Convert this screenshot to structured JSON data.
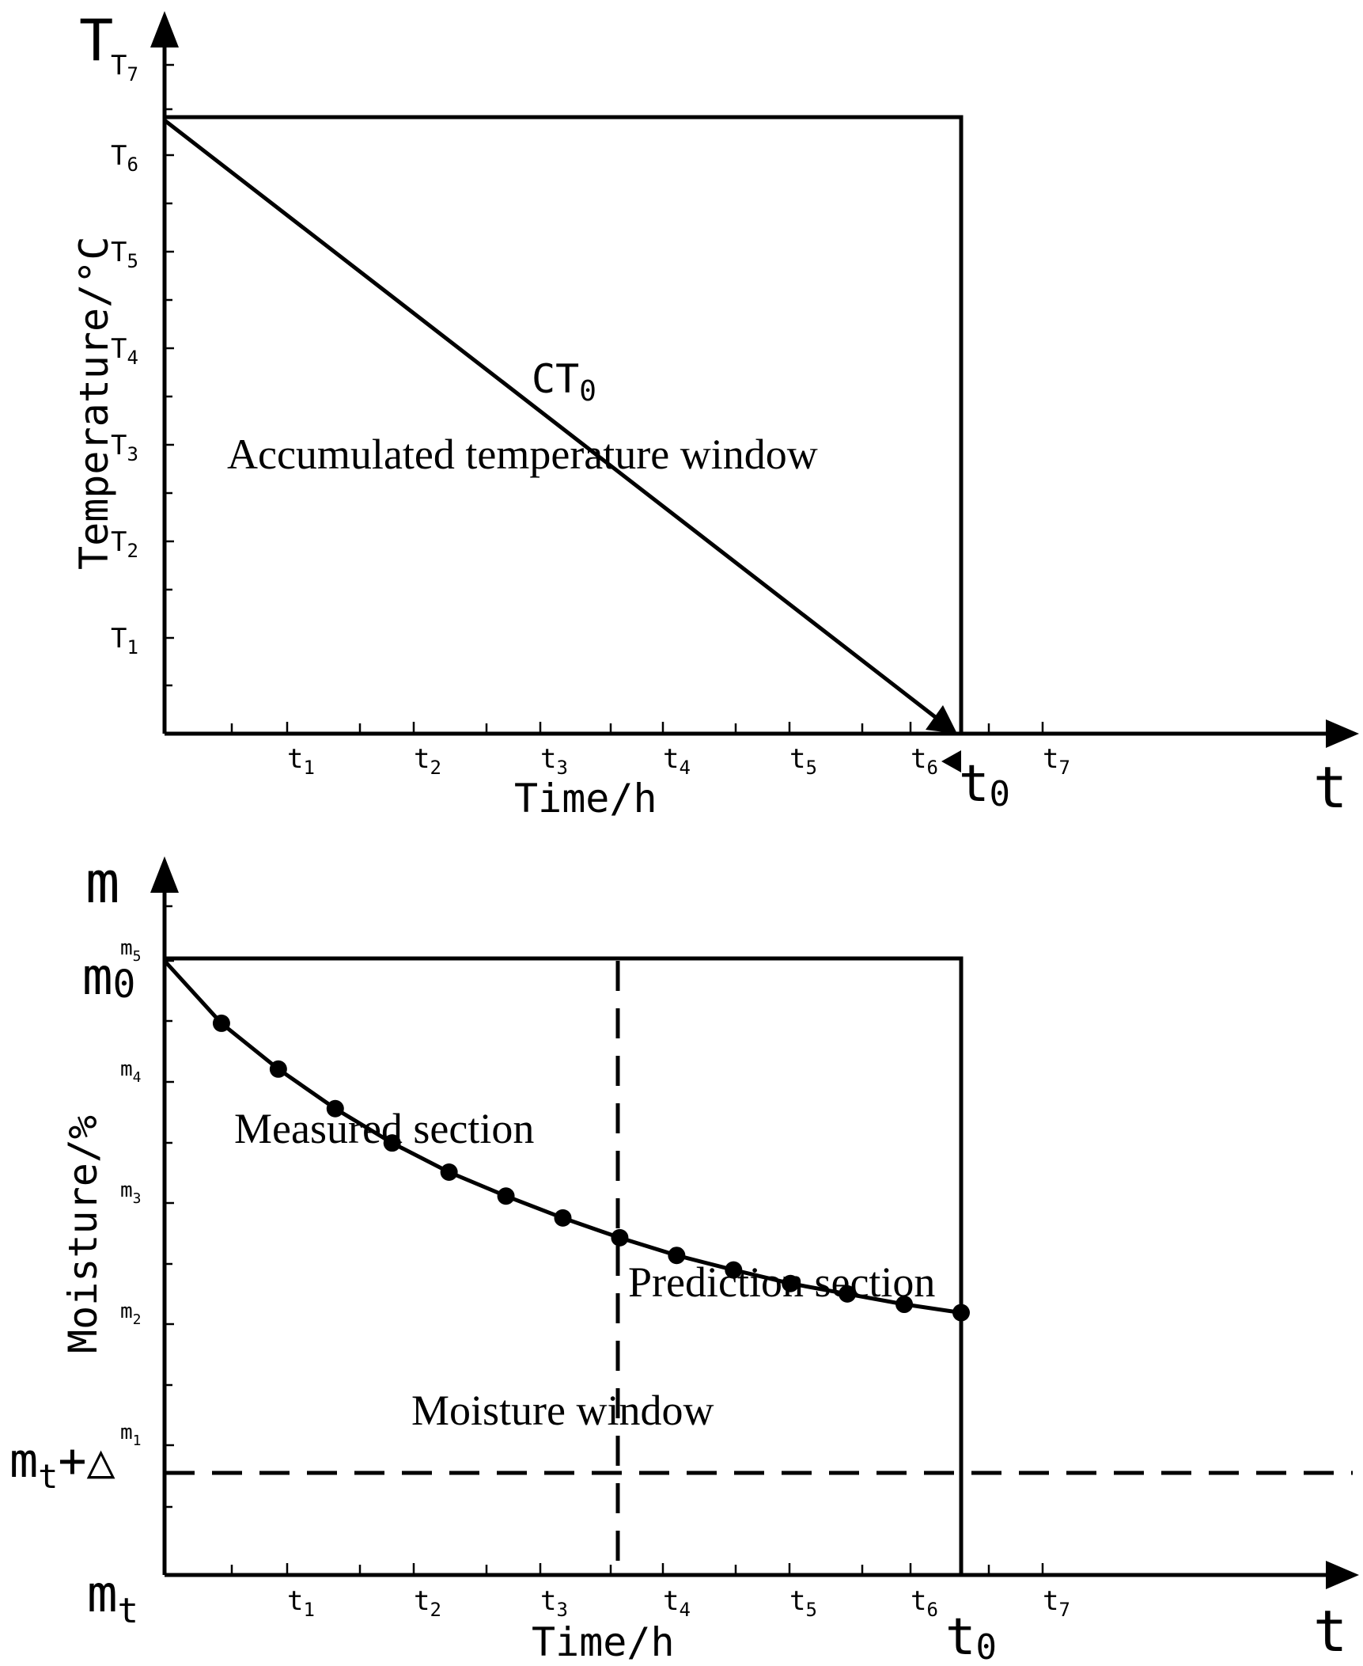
{
  "top": {
    "axis_letter_y": "T",
    "axis_letter_x": "t",
    "ylabel": "Temperature/°C",
    "xlabel": "Time/h",
    "y_ticks": [
      {
        "base": "T",
        "sub": "7"
      },
      {
        "base": "T",
        "sub": "6"
      },
      {
        "base": "T",
        "sub": "5"
      },
      {
        "base": "T",
        "sub": "4"
      },
      {
        "base": "T",
        "sub": "3"
      },
      {
        "base": "T",
        "sub": "2"
      },
      {
        "base": "T",
        "sub": "1"
      }
    ],
    "x_ticks": [
      {
        "base": "t",
        "sub": "1"
      },
      {
        "base": "t",
        "sub": "2"
      },
      {
        "base": "t",
        "sub": "3"
      },
      {
        "base": "t",
        "sub": "4"
      },
      {
        "base": "t",
        "sub": "5"
      },
      {
        "base": "t",
        "sub": "6"
      },
      {
        "base": "t",
        "sub": "7"
      }
    ],
    "t0_label": {
      "base": "t",
      "sub": "0"
    },
    "line_label": {
      "base": "CT",
      "sub": "0"
    },
    "window_label": "Accumulated temperature window"
  },
  "bottom": {
    "axis_letter_y": "m",
    "axis_letter_x": "t",
    "ylabel": "Moisture/%",
    "xlabel": "Time/h",
    "m0_label": {
      "base": "m",
      "sub": "0"
    },
    "mt_label": {
      "base": "m",
      "sub": "t"
    },
    "mt_delta_label": {
      "base": "m",
      "sub": "t",
      "suffix": "+△"
    },
    "y_ticks": [
      {
        "base": "m",
        "sub": "5"
      },
      {
        "base": "m",
        "sub": "4"
      },
      {
        "base": "m",
        "sub": "3"
      },
      {
        "base": "m",
        "sub": "2"
      },
      {
        "base": "m",
        "sub": "1"
      }
    ],
    "x_ticks": [
      {
        "base": "t",
        "sub": "1"
      },
      {
        "base": "t",
        "sub": "2"
      },
      {
        "base": "t",
        "sub": "3"
      },
      {
        "base": "t",
        "sub": "4"
      },
      {
        "base": "t",
        "sub": "5"
      },
      {
        "base": "t",
        "sub": "6"
      },
      {
        "base": "t",
        "sub": "7"
      }
    ],
    "t0_label": {
      "base": "t",
      "sub": "0"
    },
    "measured_label": "Measured section",
    "prediction_label": "Prediction section",
    "window_label": "Moisture window",
    "curve_points": [
      {
        "x": 0.0,
        "y": 5.9
      },
      {
        "x": 0.45,
        "y": 5.3
      },
      {
        "x": 0.9,
        "y": 4.86
      },
      {
        "x": 1.35,
        "y": 4.48
      },
      {
        "x": 1.8,
        "y": 4.15
      },
      {
        "x": 2.25,
        "y": 3.87
      },
      {
        "x": 2.7,
        "y": 3.64
      },
      {
        "x": 3.15,
        "y": 3.43
      },
      {
        "x": 3.6,
        "y": 3.24
      },
      {
        "x": 4.05,
        "y": 3.07
      },
      {
        "x": 4.5,
        "y": 2.93
      },
      {
        "x": 4.95,
        "y": 2.8
      },
      {
        "x": 5.4,
        "y": 2.7
      },
      {
        "x": 5.85,
        "y": 2.6
      },
      {
        "x": 6.3,
        "y": 2.52
      }
    ]
  }
}
